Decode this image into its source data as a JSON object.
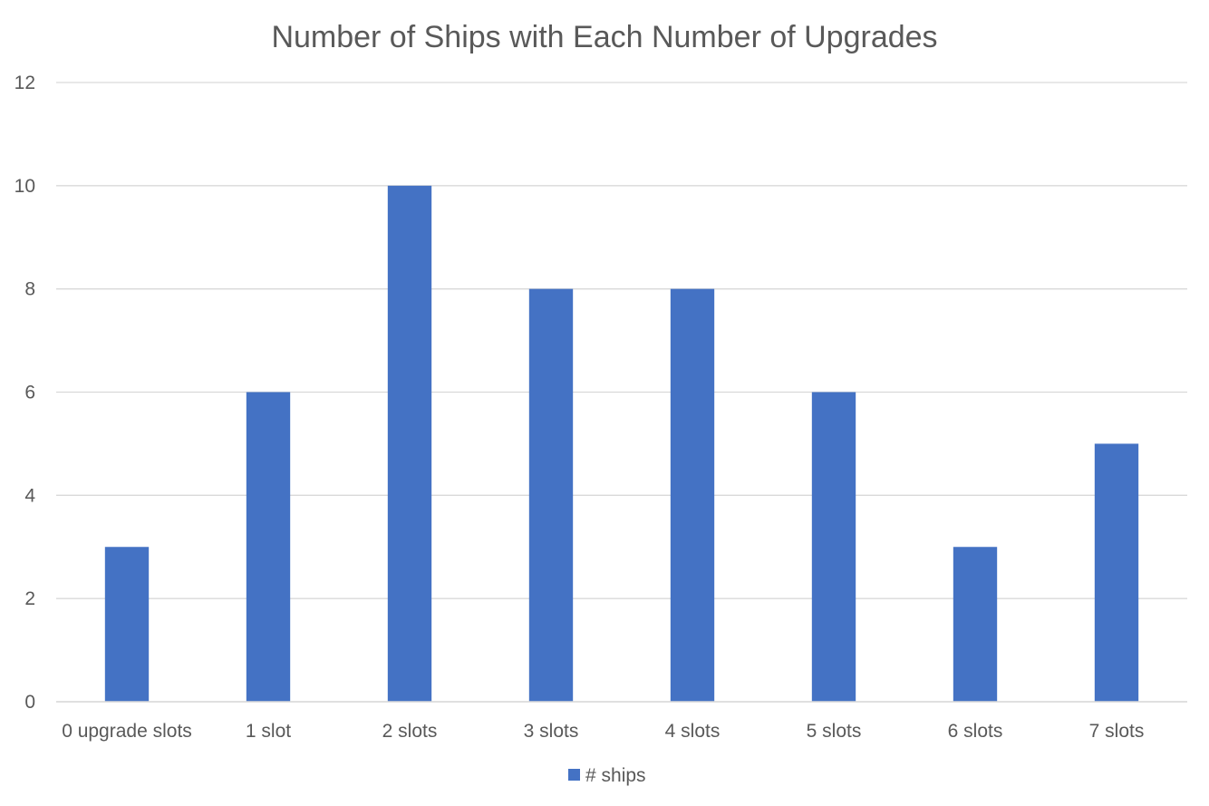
{
  "chart_data": {
    "type": "bar",
    "title": "Number of Ships with Each Number of Upgrades",
    "xlabel": "",
    "ylabel": "",
    "categories": [
      "0 upgrade slots",
      "1 slot",
      "2 slots",
      "3 slots",
      "4 slots",
      "5 slots",
      "6 slots",
      "7 slots"
    ],
    "series": [
      {
        "name": "# ships",
        "values": [
          3,
          6,
          10,
          8,
          8,
          6,
          3,
          5
        ],
        "color": "#4472C4"
      }
    ],
    "ylim": [
      0,
      12
    ],
    "yticks": [
      0,
      2,
      4,
      6,
      8,
      10,
      12
    ],
    "grid": true,
    "legend_position": "bottom",
    "colors": {
      "grid": "#D9D9D9",
      "text": "#595959",
      "axis": "#D9D9D9"
    }
  }
}
